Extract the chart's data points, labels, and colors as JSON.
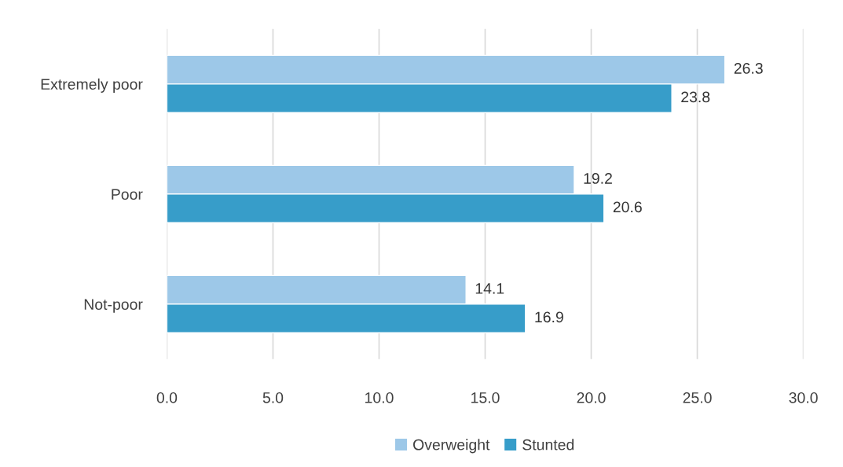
{
  "chart_data": {
    "type": "bar",
    "orientation": "horizontal",
    "categories": [
      "Extremely poor",
      "Poor",
      "Not-poor"
    ],
    "series": [
      {
        "name": "Overweight",
        "color": "#9dc8e8",
        "values": [
          26.3,
          19.2,
          14.1
        ]
      },
      {
        "name": "Stunted",
        "color": "#379dc9",
        "values": [
          23.8,
          20.6,
          16.9
        ]
      }
    ],
    "xlim": [
      0,
      30
    ],
    "xticks": [
      {
        "value": 0,
        "label": "0.0"
      },
      {
        "value": 5,
        "label": "5.0"
      },
      {
        "value": 10,
        "label": "10.0"
      },
      {
        "value": 15,
        "label": "15.0"
      },
      {
        "value": 20,
        "label": "20.0"
      },
      {
        "value": 25,
        "label": "25.0"
      },
      {
        "value": 30,
        "label": "30.0"
      }
    ],
    "grid": "x",
    "legend": "bottom",
    "data_labels": true
  }
}
